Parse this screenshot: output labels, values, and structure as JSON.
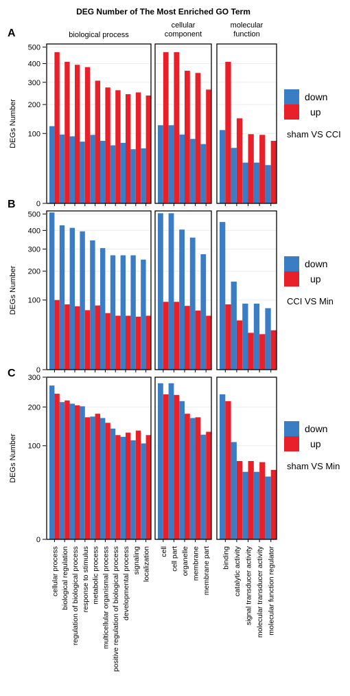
{
  "title": "DEG Number of The Most Enriched GO Term",
  "facets": [
    {
      "name": "biological process",
      "lines": [
        "biological process"
      ],
      "categories": [
        "cellular process",
        "biological regulation",
        "regulation of biological process",
        "response to stimulus",
        "metabolic process",
        "multicellular organismal process",
        "positive regulation of biological process",
        "developmental process",
        "signaling",
        "localization"
      ]
    },
    {
      "name": "cellular component",
      "lines": [
        "cellular",
        "component"
      ],
      "categories": [
        "cell",
        "cell part",
        "organelle",
        "membrane",
        "membrane part"
      ]
    },
    {
      "name": "molecular function",
      "lines": [
        "molecular",
        "function"
      ],
      "categories": [
        "binding",
        "catalytic activity",
        "signal transducer activity",
        "molecular transducer activity",
        "molecular function regulator"
      ]
    }
  ],
  "colors": {
    "down": "#3b7dc4",
    "up": "#e8202a"
  },
  "chart_data": [
    {
      "panel": "A",
      "type": "bar",
      "comparison": "sham VS CCI",
      "ylabel": "DEGs Number",
      "y_scale": "sqrt",
      "ylim": [
        0,
        520
      ],
      "yticks": [
        0,
        100,
        200,
        300,
        400,
        500
      ],
      "legend": [
        "down",
        "up"
      ],
      "series": [
        {
          "name": "down",
          "values": [
            122,
            97,
            92,
            78,
            96,
            80,
            69,
            75,
            60,
            62,
            125,
            125,
            97,
            85,
            72,
            110,
            63,
            34,
            34,
            30
          ]
        },
        {
          "name": "up",
          "values": [
            468,
            410,
            393,
            380,
            308,
            275,
            262,
            244,
            252,
            238,
            468,
            468,
            360,
            348,
            265,
            410,
            148,
            98,
            96,
            80
          ]
        }
      ]
    },
    {
      "panel": "B",
      "type": "bar",
      "comparison": "CCI VS Min",
      "ylabel": "DEGs Number",
      "y_scale": "sqrt",
      "ylim": [
        0,
        520
      ],
      "yticks": [
        0,
        100,
        200,
        300,
        400,
        500
      ],
      "legend": [
        "down",
        "up"
      ],
      "series": [
        {
          "name": "down",
          "values": [
            510,
            430,
            415,
            395,
            345,
            305,
            270,
            270,
            270,
            250,
            505,
            505,
            405,
            360,
            275,
            450,
            160,
            90,
            90,
            78
          ]
        },
        {
          "name": "up",
          "values": [
            100,
            88,
            83,
            73,
            85,
            66,
            60,
            60,
            58,
            60,
            95,
            95,
            84,
            72,
            60,
            88,
            50,
            28,
            26,
            32
          ]
        }
      ]
    },
    {
      "panel": "C",
      "type": "bar",
      "comparison": "sham VS Min",
      "ylabel": "DEGs Number",
      "y_scale": "sqrt",
      "ylim": [
        0,
        300
      ],
      "yticks": [
        0,
        100,
        200,
        300
      ],
      "legend": [
        "down",
        "up"
      ],
      "series": [
        {
          "name": "down",
          "values": [
            270,
            215,
            210,
            202,
            172,
            168,
            140,
            120,
            112,
            105,
            278,
            278,
            218,
            168,
            125,
            240,
            108,
            52,
            52,
            45
          ]
        },
        {
          "name": "up",
          "values": [
            242,
            220,
            205,
            170,
            180,
            155,
            124,
            130,
            135,
            124,
            240,
            238,
            180,
            170,
            132,
            218,
            70,
            70,
            68,
            55
          ]
        }
      ]
    }
  ]
}
